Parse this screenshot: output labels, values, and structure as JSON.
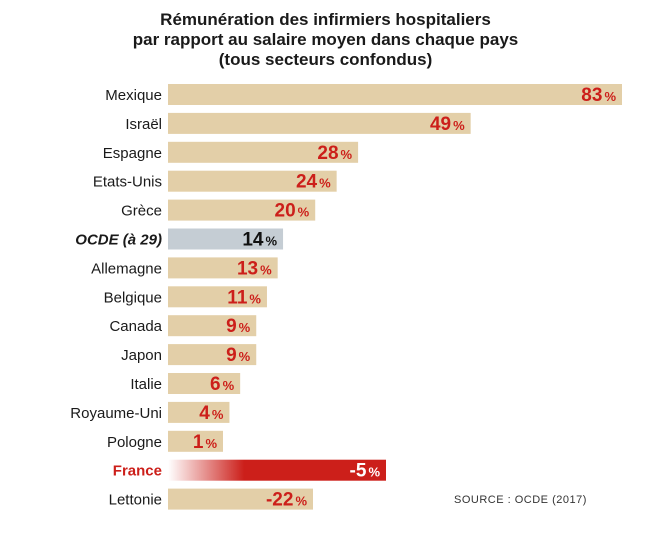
{
  "title_lines": [
    "Rémunération des infirmiers hospitaliers",
    "par rapport au salaire moyen dans chaque pays",
    "(tous secteurs confondus)"
  ],
  "source": "SOURCE : OCDE (2017)",
  "colors": {
    "bar": "#e3cfa8",
    "bar_highlight": "#c5cdd4",
    "bar_negative_highlight": "#cc1f1a",
    "value_text": "#cc1f1a",
    "value_text_highlight": "#111111"
  },
  "chart_data": {
    "type": "bar",
    "orientation": "horizontal",
    "unit": "%",
    "categories": [
      "Mexique",
      "Israël",
      "Espagne",
      "Etats-Unis",
      "Grèce",
      "OCDE (à 29)",
      "Allemagne",
      "Belgique",
      "Canada",
      "Japon",
      "Italie",
      "Royaume-Uni",
      "Pologne",
      "France",
      "Lettonie"
    ],
    "values": [
      83,
      49,
      28,
      24,
      20,
      14,
      13,
      11,
      9,
      9,
      6,
      4,
      1,
      -5,
      -22
    ],
    "value_labels": [
      "83",
      "49",
      "28",
      "24",
      "20",
      "14",
      "13",
      "11",
      "9",
      "9",
      "6",
      "4",
      "1",
      "-5",
      "-22"
    ],
    "highlight": {
      "OCDE (à 29)": "average",
      "France": "focus"
    },
    "xlim": [
      -30,
      90
    ]
  }
}
